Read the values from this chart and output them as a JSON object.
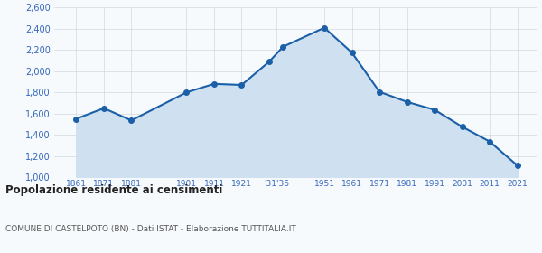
{
  "years": [
    1861,
    1871,
    1881,
    1901,
    1911,
    1921,
    1931,
    1936,
    1951,
    1961,
    1971,
    1981,
    1991,
    2001,
    2011,
    2021
  ],
  "population": [
    1550,
    1650,
    1535,
    1800,
    1880,
    1870,
    2090,
    2230,
    2410,
    2175,
    1805,
    1710,
    1635,
    1475,
    1335,
    1110
  ],
  "ylim": [
    1000,
    2600
  ],
  "yticks": [
    1000,
    1200,
    1400,
    1600,
    1800,
    2000,
    2200,
    2400,
    2600
  ],
  "line_color": "#1a5fa8",
  "fill_color": "#cfe0f0",
  "marker_color": "#1a5fa8",
  "bg_color": "#f7fafd",
  "grid_color": "#d0d8e0",
  "title": "Popolazione residente ai censimenti",
  "subtitle": "COMUNE DI CASTELPOTO (BN) - Dati ISTAT - Elaborazione TUTTITALIA.IT",
  "title_color": "#222222",
  "subtitle_color": "#555555",
  "tick_label_color": "#3366bb",
  "xlim_left": 1853,
  "xlim_right": 2028
}
